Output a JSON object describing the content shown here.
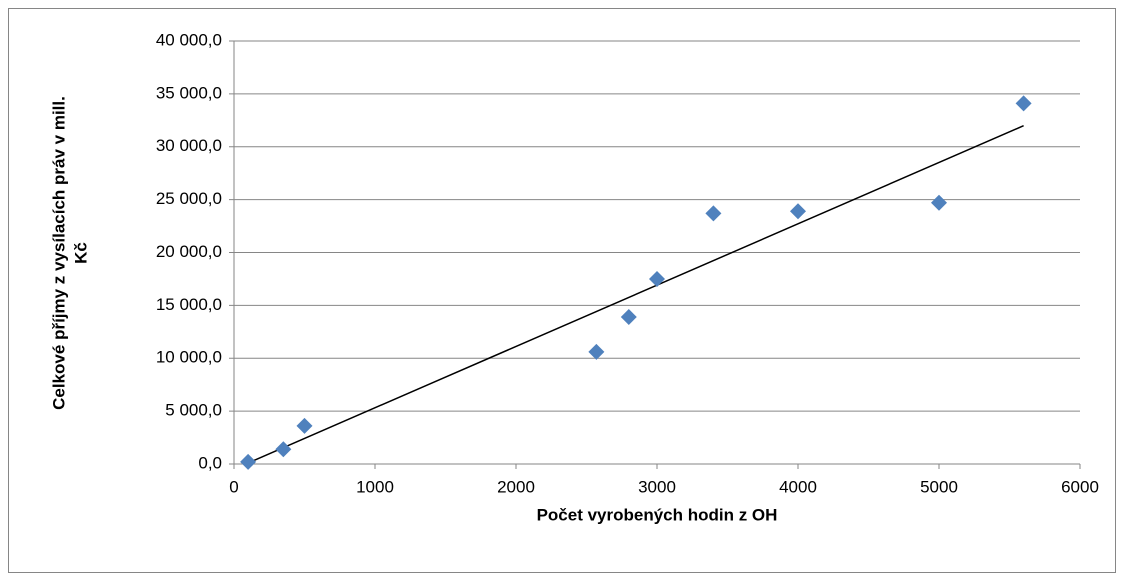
{
  "chart_data": {
    "type": "scatter",
    "x_label": "Počet vyrobených hodin z OH",
    "y_label": [
      "Celkové příjmy z vysílacích práv v mill.",
      "Kč"
    ],
    "series": [
      {
        "color": "#4f81bd",
        "x": [
          100,
          350,
          500,
          2570,
          2800,
          3000,
          3400,
          4000,
          5000,
          5600
        ],
        "values": [
          200,
          1400,
          3600,
          10600,
          13900,
          17500,
          23700,
          23900,
          24700,
          34100
        ]
      }
    ],
    "trendline": "linear",
    "xlim": [
      0,
      6000
    ],
    "xticks": [
      0,
      1000,
      2000,
      3000,
      4000,
      5000,
      6000
    ],
    "ylim": [
      0,
      40000
    ],
    "yticks": [
      {
        "value": 0,
        "label": "0,0"
      },
      {
        "value": 5000,
        "label": "5 000,0"
      },
      {
        "value": 10000,
        "label": "10 000,0"
      },
      {
        "value": 15000,
        "label": "15 000,0"
      },
      {
        "value": 20000,
        "label": "20 000,0"
      },
      {
        "value": 25000,
        "label": "25 000,0"
      },
      {
        "value": 30000,
        "label": "30 000,0"
      },
      {
        "value": 35000,
        "label": "35 000,0"
      },
      {
        "value": 40000,
        "label": "40 000,0"
      }
    ],
    "grid": true
  }
}
